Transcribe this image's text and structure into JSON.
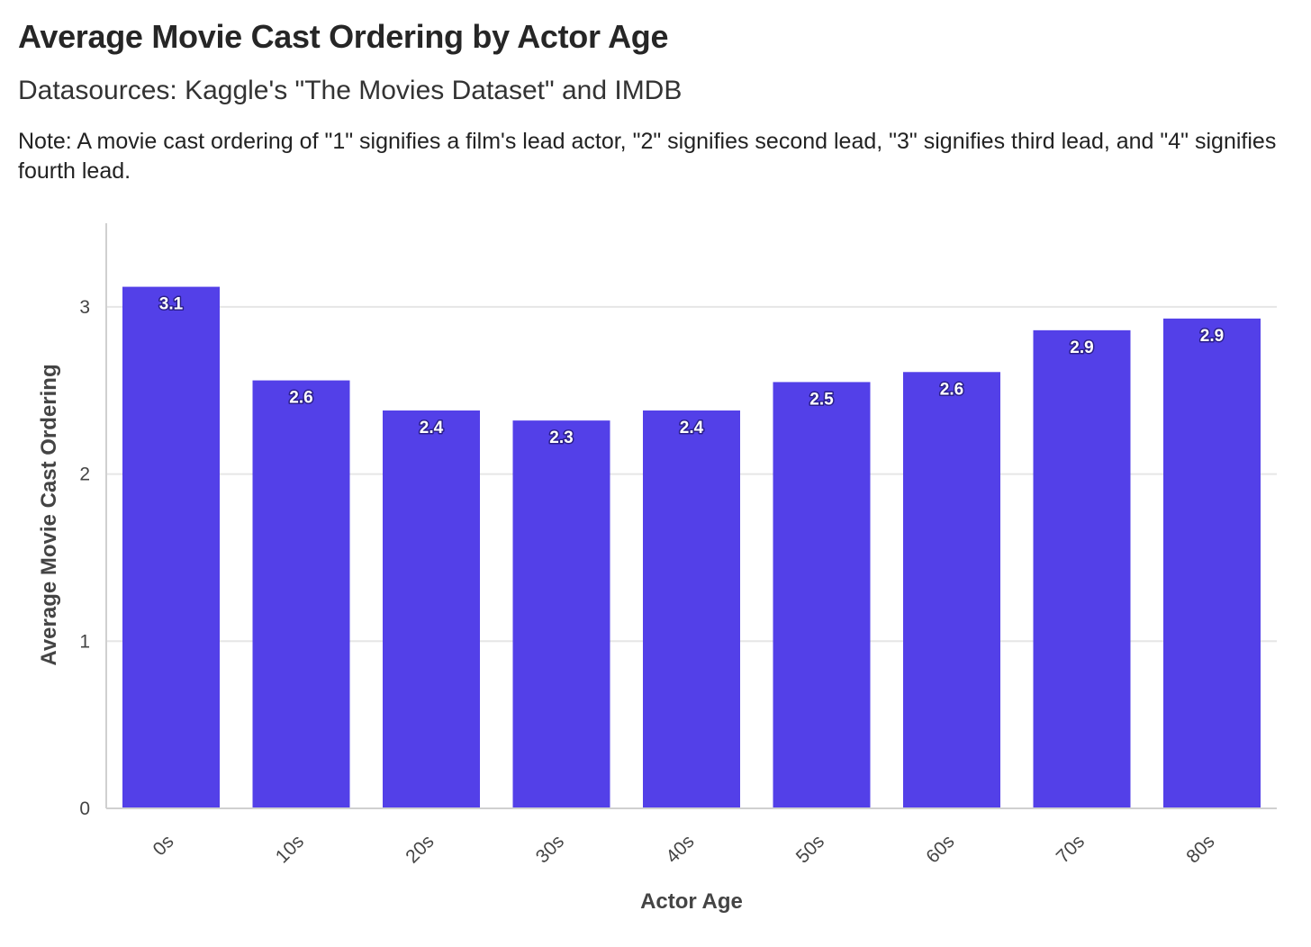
{
  "header": {
    "title": "Average Movie Cast Ordering by Actor Age",
    "subtitle": "Datasources: Kaggle's \"The Movies Dataset\" and IMDB",
    "note": "Note: A movie cast ordering of \"1\" signifies a film's lead actor, \"2\" signifies second lead, \"3\" signifies third lead, and \"4\" signifies fourth lead."
  },
  "colors": {
    "bar": "#5340e8",
    "grid": "#e6e6e6",
    "axis": "#d0d0d0"
  },
  "chart_data": {
    "type": "bar",
    "title": "Average Movie Cast Ordering by Actor Age",
    "subtitle": "Datasources: Kaggle's \"The Movies Dataset\" and IMDB",
    "xlabel": "Actor Age",
    "ylabel": "Average Movie Cast Ordering",
    "categories": [
      "0s",
      "10s",
      "20s",
      "30s",
      "40s",
      "50s",
      "60s",
      "70s",
      "80s"
    ],
    "values": [
      3.12,
      2.56,
      2.38,
      2.32,
      2.38,
      2.55,
      2.61,
      2.86,
      2.93
    ],
    "data_labels": [
      "3.1",
      "2.6",
      "2.4",
      "2.3",
      "2.4",
      "2.5",
      "2.6",
      "2.9",
      "2.9"
    ],
    "yticks": [
      0,
      1,
      2,
      3
    ],
    "ylim": [
      0,
      3.5
    ],
    "grid": true,
    "legend": "none"
  }
}
